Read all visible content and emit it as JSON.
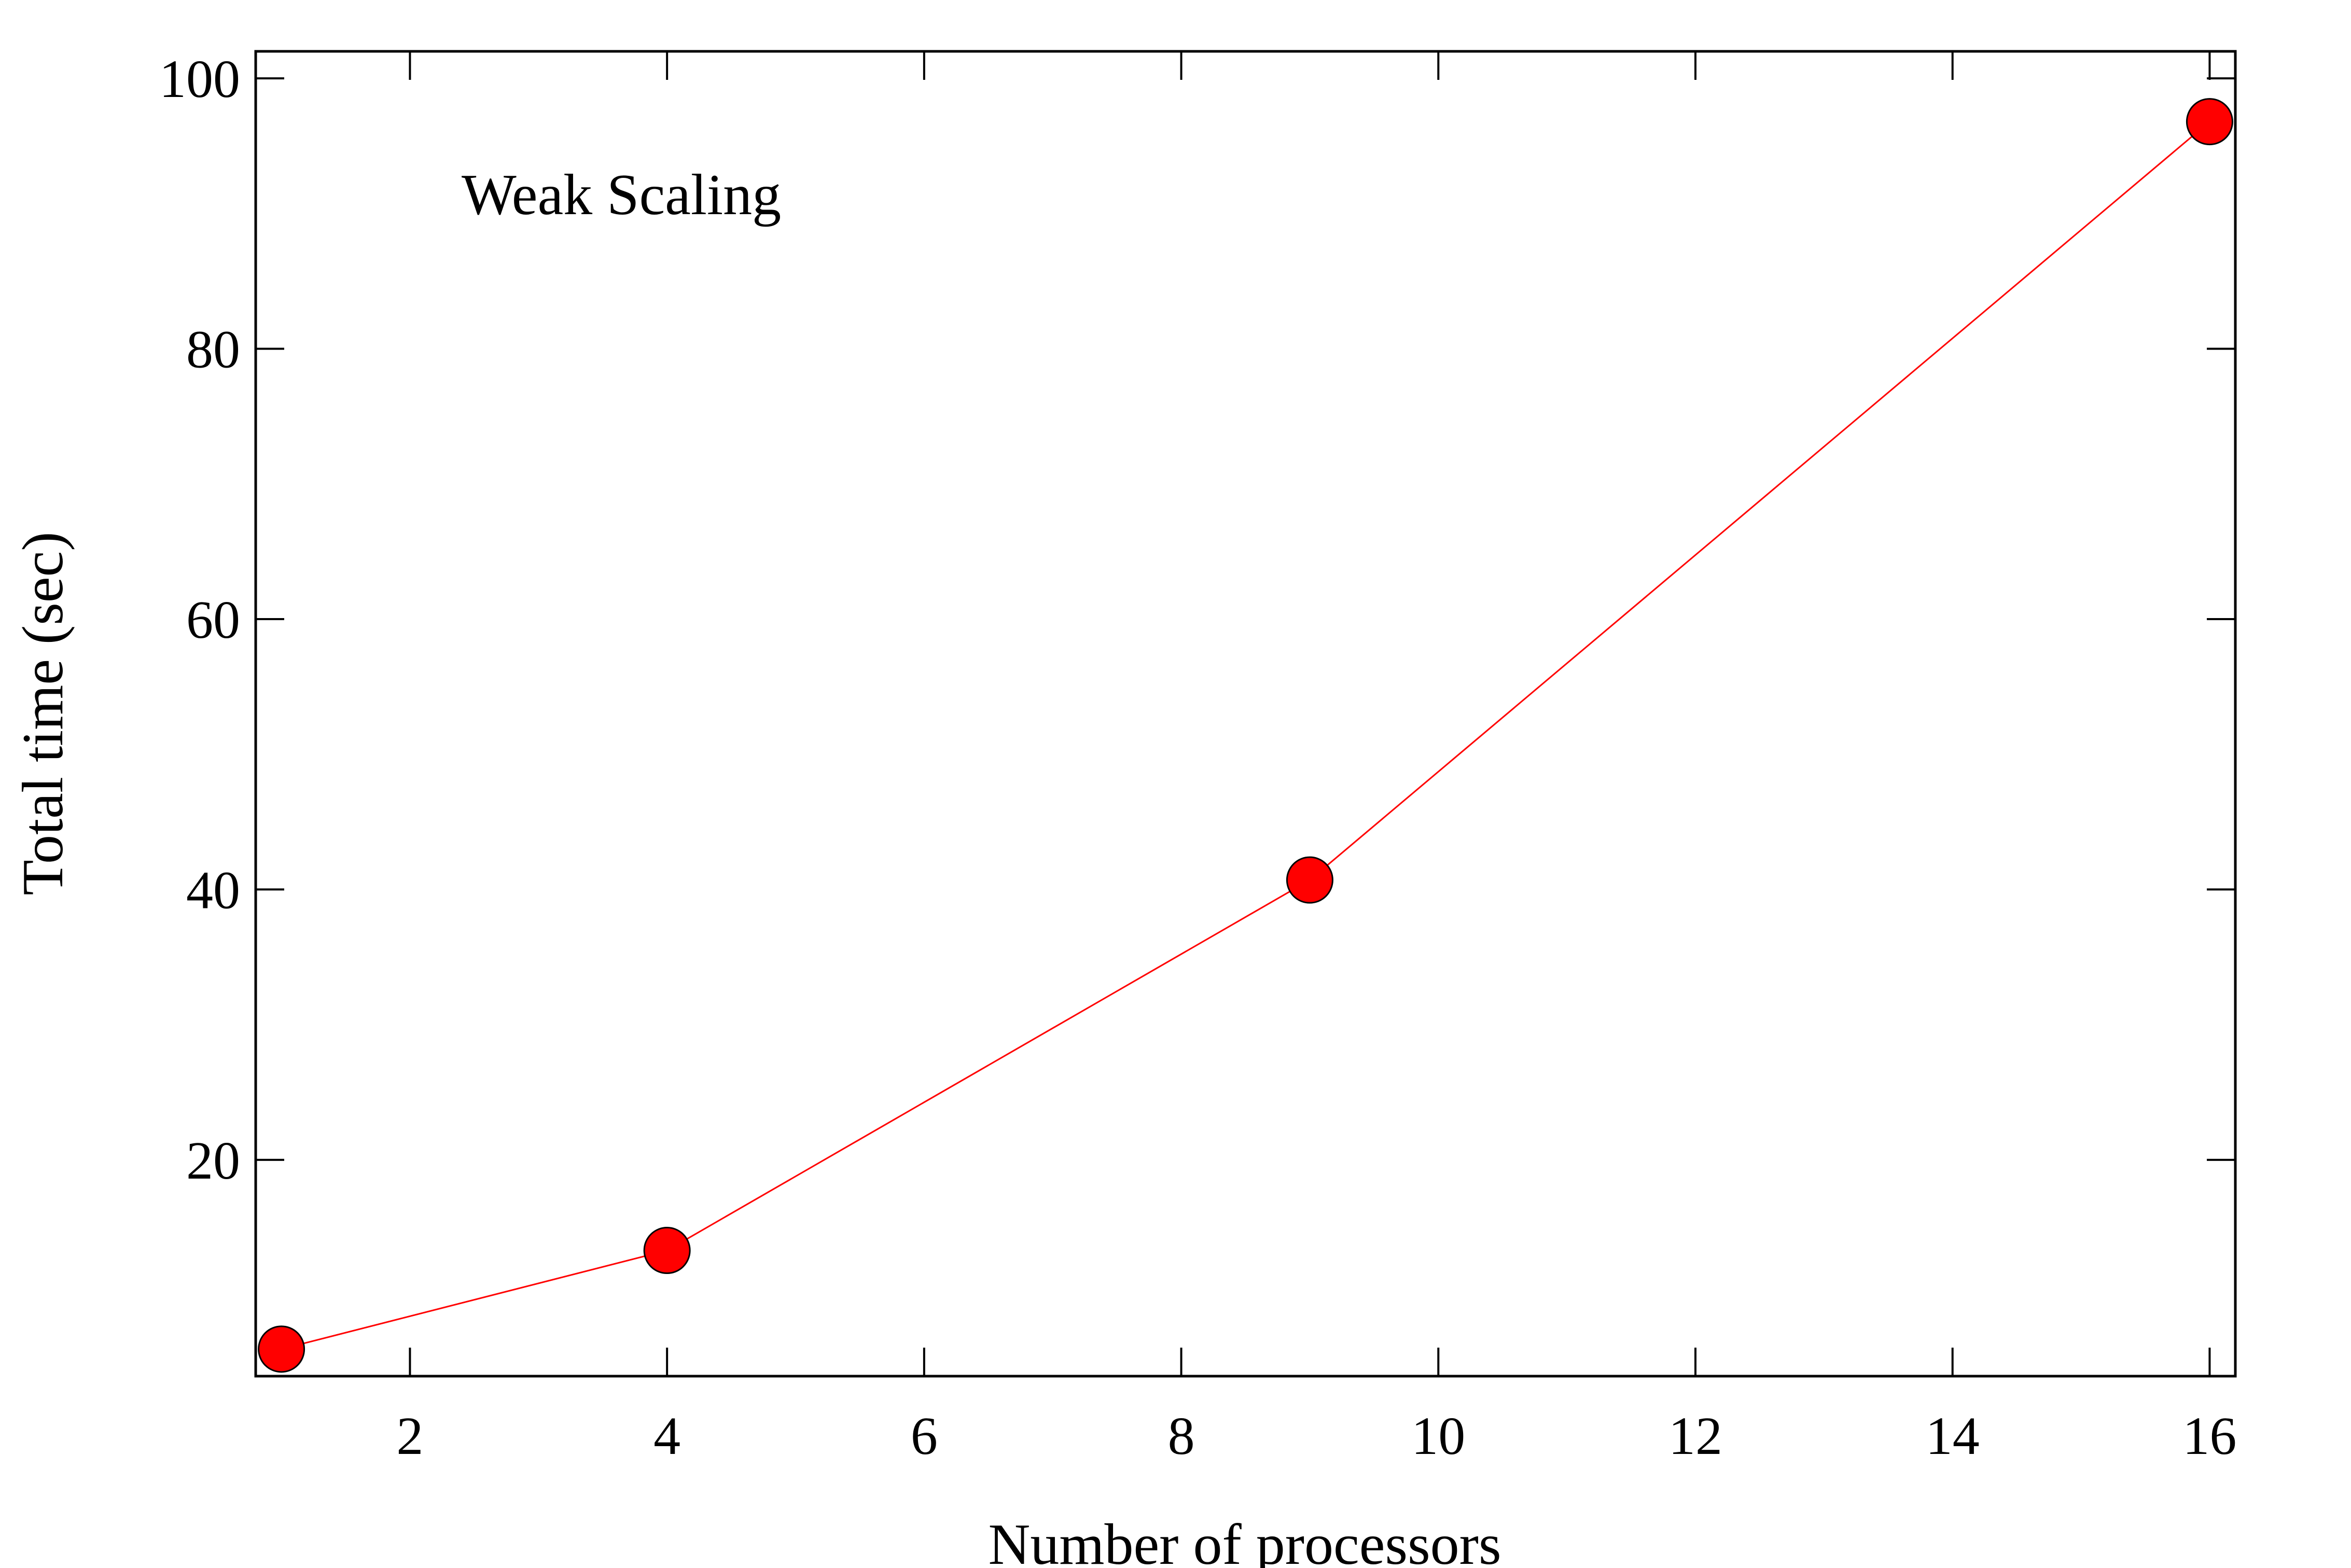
{
  "chart_data": {
    "type": "line",
    "title": "",
    "xlabel": "Number of processors",
    "ylabel": "Total time (sec)",
    "annotation": "Weak Scaling",
    "xlim": [
      0.8,
      16.2
    ],
    "ylim": [
      4,
      102
    ],
    "xticks": [
      2,
      4,
      6,
      8,
      10,
      12,
      14,
      16
    ],
    "yticks": [
      20,
      40,
      60,
      80,
      100
    ],
    "grid": false,
    "legend": "none",
    "series": [
      {
        "name": "Weak Scaling",
        "color": "#ff0000",
        "x": [
          1,
          4,
          9,
          16
        ],
        "y": [
          6.0,
          13.3,
          40.7,
          96.8
        ]
      }
    ]
  }
}
